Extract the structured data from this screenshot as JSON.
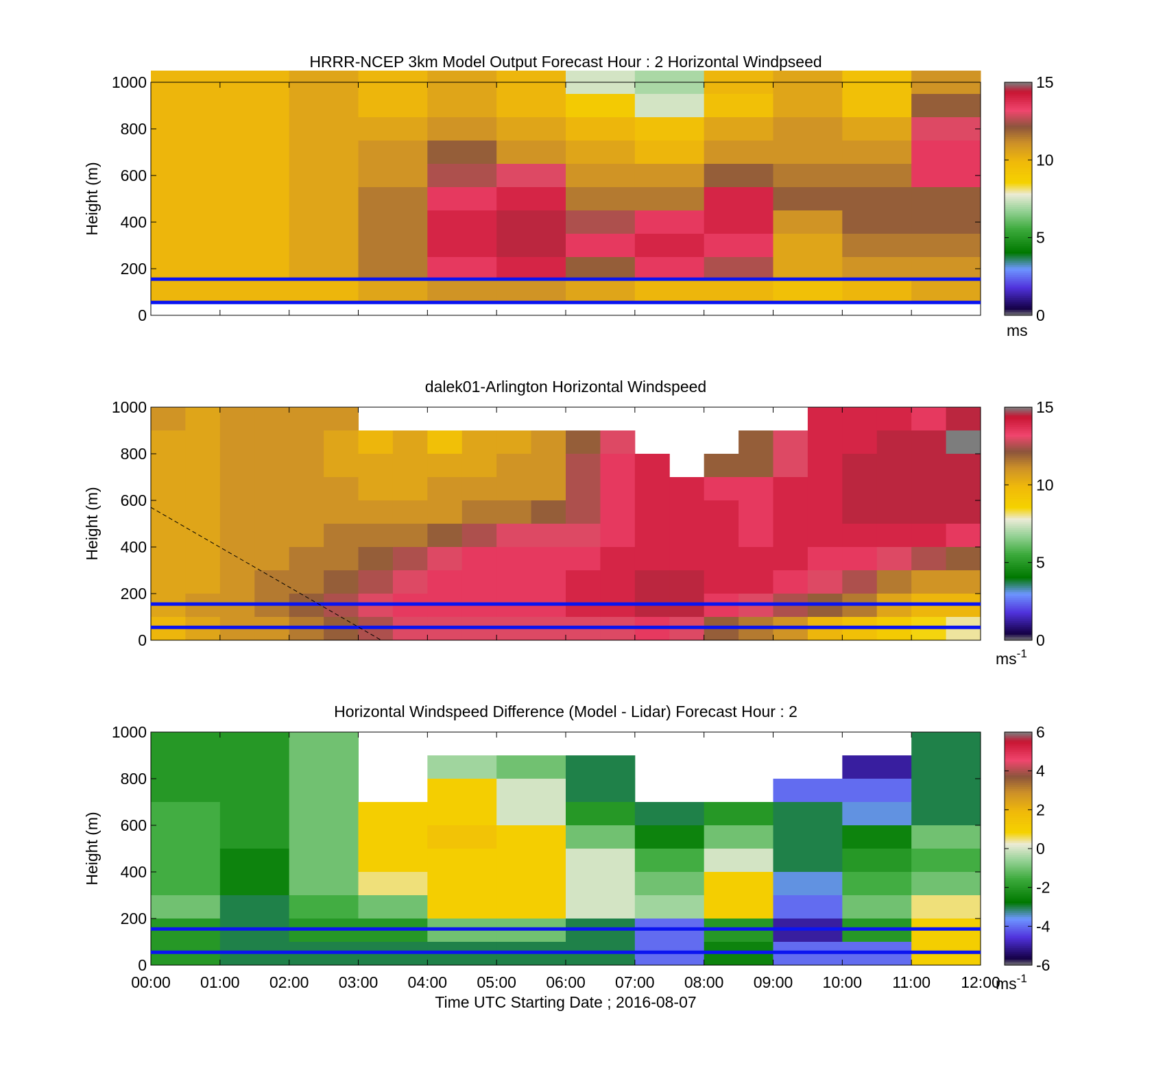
{
  "panels": [
    {
      "title": "HRRR-NCEP 3km Model Output   Forecast Hour : 2 Horizontal Windpseed",
      "ylabel": "Height (m)",
      "colorbar_unit": "ms",
      "colorbar_ticks": [
        "0",
        "5",
        "10",
        "15"
      ]
    },
    {
      "title": "dalek01-Arlington  Horizontal Windspeed",
      "ylabel": "Height (m)",
      "colorbar_unit": "ms",
      "colorbar_unit_sup": "-1",
      "colorbar_ticks": [
        "0",
        "5",
        "10",
        "15"
      ]
    },
    {
      "title": "Horizontal Windspeed Difference (Model - Lidar) Forecast Hour : 2",
      "ylabel": "Height (m)",
      "colorbar_unit": "ms",
      "colorbar_unit_sup": "-1",
      "colorbar_ticks": [
        "-6",
        "-4",
        "-2",
        "0",
        "2",
        "4",
        "6"
      ]
    }
  ],
  "xlabel": "Time UTC  Starting Date ; 2016-08-07",
  "x_ticks": [
    "00:00",
    "01:00",
    "02:00",
    "03:00",
    "04:00",
    "05:00",
    "06:00",
    "07:00",
    "08:00",
    "09:00",
    "10:00",
    "11:00",
    "12:00"
  ],
  "y_ticks": [
    "0",
    "200",
    "400",
    "600",
    "800",
    "1000"
  ],
  "chart_data": [
    {
      "type": "heatmap",
      "title": "HRRR-NCEP 3km Model Output   Forecast Hour : 2 Horizontal Windpseed",
      "xlabel": "",
      "ylabel": "Height (m)",
      "x": [
        "00:00",
        "01:00",
        "02:00",
        "03:00",
        "04:00",
        "05:00",
        "06:00",
        "07:00",
        "08:00",
        "09:00",
        "10:00",
        "11:00"
      ],
      "y_levels_m": [
        1000,
        900,
        800,
        700,
        600,
        500,
        400,
        300,
        200,
        100
      ],
      "xlim": [
        "00:00",
        "12:00"
      ],
      "ylim": [
        0,
        1000
      ],
      "colorbar": {
        "label": "ms",
        "range": [
          0,
          15
        ]
      },
      "values": [
        [
          10,
          10,
          10.5,
          10,
          10.5,
          10,
          7.5,
          7,
          10,
          10.5,
          9.5,
          11
        ],
        [
          10,
          10,
          10.5,
          10,
          10.5,
          10,
          9,
          7.5,
          9.5,
          10.5,
          9.5,
          12
        ],
        [
          10,
          10,
          10.5,
          10.5,
          11,
          10.5,
          10,
          9.5,
          10.5,
          11,
          10.5,
          13
        ],
        [
          10,
          10,
          10.5,
          11,
          12,
          11,
          10.5,
          10,
          11,
          11,
          11,
          13.5
        ],
        [
          10,
          10,
          10.5,
          11,
          12.5,
          13,
          11,
          11,
          12,
          11.5,
          11.5,
          13.5
        ],
        [
          10,
          10,
          10.5,
          11.5,
          13.5,
          14,
          11.5,
          11.5,
          14,
          12,
          12,
          12
        ],
        [
          10,
          10,
          10.5,
          11.5,
          14,
          14.5,
          12.5,
          13.5,
          14,
          11,
          12,
          12
        ],
        [
          10,
          10,
          10.5,
          11.5,
          14,
          14.5,
          13.5,
          14,
          13.5,
          10.5,
          11.5,
          11.5
        ],
        [
          10,
          10,
          10.5,
          11.5,
          13.5,
          14,
          12,
          13.5,
          12.5,
          10.5,
          11,
          11
        ],
        [
          10,
          10,
          10,
          10.5,
          11,
          11,
          10.5,
          10,
          10,
          9.5,
          10,
          10.5
        ]
      ],
      "horizontal_lines_m": [
        55,
        155
      ]
    },
    {
      "type": "heatmap",
      "title": "dalek01-Arlington  Horizontal Windspeed",
      "xlabel": "",
      "ylabel": "Height (m)",
      "x": [
        "00:00",
        "00:30",
        "01:00",
        "01:30",
        "02:00",
        "02:30",
        "03:00",
        "03:30",
        "04:00",
        "04:30",
        "05:00",
        "05:30",
        "06:00",
        "06:30",
        "07:00",
        "07:30",
        "08:00",
        "08:30",
        "09:00",
        "09:30",
        "10:00",
        "10:30",
        "11:00",
        "11:30"
      ],
      "y_levels_m": [
        950,
        850,
        750,
        650,
        550,
        450,
        350,
        250,
        150,
        50
      ],
      "xlim": [
        "00:00",
        "12:00"
      ],
      "ylim": [
        0,
        1000
      ],
      "colorbar": {
        "label": "ms-1",
        "range": [
          0,
          15
        ]
      },
      "values": [
        [
          11,
          10.5,
          11,
          11,
          11,
          11,
          null,
          null,
          null,
          null,
          null,
          null,
          null,
          null,
          null,
          null,
          null,
          null,
          null,
          14,
          14,
          14,
          13.5,
          14.5
        ],
        [
          10.5,
          10.5,
          11,
          11,
          11,
          10.5,
          10,
          10.5,
          9.5,
          10.5,
          10.5,
          11,
          12,
          13,
          null,
          null,
          null,
          12,
          13,
          14,
          14,
          14.5,
          14.5,
          15
        ],
        [
          10.5,
          10.5,
          11,
          11,
          11,
          10.5,
          10.5,
          10.5,
          10.5,
          10.5,
          11,
          11,
          12.5,
          13.5,
          14,
          null,
          12,
          12,
          13,
          14,
          14.5,
          14.5,
          14.5,
          14.5
        ],
        [
          10.5,
          10.5,
          11,
          11,
          11,
          11,
          10.5,
          10.5,
          11,
          11,
          11,
          11,
          12.5,
          13.5,
          14,
          14,
          13.5,
          13.5,
          14,
          14,
          14.5,
          14.5,
          14.5,
          14.5
        ],
        [
          10.5,
          10.5,
          11,
          11,
          11,
          11,
          11,
          11,
          11,
          11.5,
          11.5,
          12,
          12.5,
          13.5,
          14,
          14,
          14,
          13.5,
          14,
          14,
          14.5,
          14.5,
          14.5,
          14.5
        ],
        [
          10.5,
          10.5,
          11,
          11,
          11,
          11.5,
          11.5,
          11.5,
          12,
          12.5,
          13,
          13,
          13,
          13.5,
          14,
          14,
          14,
          13.5,
          14,
          14,
          14,
          14,
          14,
          13.5
        ],
        [
          10.5,
          10.5,
          11,
          11,
          11.5,
          11.5,
          12,
          12.5,
          13,
          13.5,
          13.5,
          13.5,
          13.5,
          14,
          14,
          14,
          14,
          14,
          14,
          13.5,
          13.5,
          13,
          12.5,
          12
        ],
        [
          10.5,
          10.5,
          11,
          11.5,
          11.5,
          12,
          12.5,
          13,
          13.5,
          13.5,
          13.5,
          13.5,
          14,
          14,
          14.5,
          14.5,
          14,
          14,
          13.5,
          13,
          12.5,
          11.5,
          11,
          11
        ],
        [
          10.5,
          11,
          11,
          11.5,
          12,
          12.5,
          13,
          13.5,
          13.5,
          13.5,
          13.5,
          13.5,
          14,
          14,
          14.5,
          14.5,
          13.5,
          13,
          12.5,
          12,
          11.5,
          10.5,
          10,
          10
        ],
        [
          10,
          10.5,
          11,
          11,
          11.5,
          12,
          12.5,
          13,
          13,
          13,
          13,
          13,
          13,
          13,
          13.5,
          13,
          12,
          11.5,
          11,
          10,
          9.5,
          9,
          8.5,
          8
        ]
      ],
      "horizontal_lines_m": [
        55,
        155
      ],
      "dashed_line": {
        "from": [
          "00:00",
          570
        ],
        "to": [
          "03:20",
          0
        ]
      }
    },
    {
      "type": "heatmap",
      "title": "Horizontal Windspeed Difference (Model - Lidar) Forecast Hour : 2",
      "xlabel": "Time UTC  Starting Date ; 2016-08-07",
      "ylabel": "Height (m)",
      "x": [
        "00:00",
        "01:00",
        "02:00",
        "03:00",
        "04:00",
        "05:00",
        "06:00",
        "07:00",
        "08:00",
        "09:00",
        "10:00",
        "11:00"
      ],
      "y_levels_m": [
        950,
        850,
        750,
        650,
        550,
        450,
        350,
        250,
        150,
        50
      ],
      "xlim": [
        "00:00",
        "12:00"
      ],
      "ylim": [
        0,
        1000
      ],
      "colorbar": {
        "label": "ms-1",
        "range": [
          -6,
          6
        ]
      },
      "values": [
        [
          -2,
          -2,
          -1,
          null,
          null,
          null,
          null,
          null,
          null,
          null,
          null,
          -3
        ],
        [
          -2,
          -2,
          -1,
          null,
          -0.5,
          -1,
          -3,
          null,
          null,
          null,
          -5,
          -3
        ],
        [
          -2,
          -2,
          -1,
          null,
          1,
          0,
          -3,
          null,
          null,
          -4,
          -4,
          -3
        ],
        [
          -1.5,
          -2,
          -1,
          1,
          1,
          0,
          -2,
          -3,
          -2,
          -3,
          -3.5,
          -3
        ],
        [
          -1.5,
          -2,
          -1,
          1,
          1.5,
          1,
          -1,
          -2.5,
          -1,
          -3,
          -2.5,
          -1
        ],
        [
          -1.5,
          -2.5,
          -1,
          1,
          1,
          1,
          0,
          -1.5,
          0,
          -3,
          -2,
          -1.5
        ],
        [
          -1.5,
          -2.5,
          -1,
          0.5,
          1,
          1,
          0,
          -1,
          1,
          -3.5,
          -1.5,
          -1
        ],
        [
          -1,
          -3,
          -1.5,
          -1,
          1,
          1,
          0,
          -0.5,
          1,
          -4,
          -1,
          0.5
        ],
        [
          -2,
          -3,
          -2,
          -2,
          -1,
          -1,
          -3,
          -4,
          -2,
          -5,
          -2,
          1
        ],
        [
          -2,
          -3,
          -3,
          -3,
          -3,
          -3,
          -3,
          -4,
          -2.5,
          -4,
          -4,
          1
        ]
      ],
      "horizontal_lines_m": [
        55,
        155
      ]
    }
  ]
}
